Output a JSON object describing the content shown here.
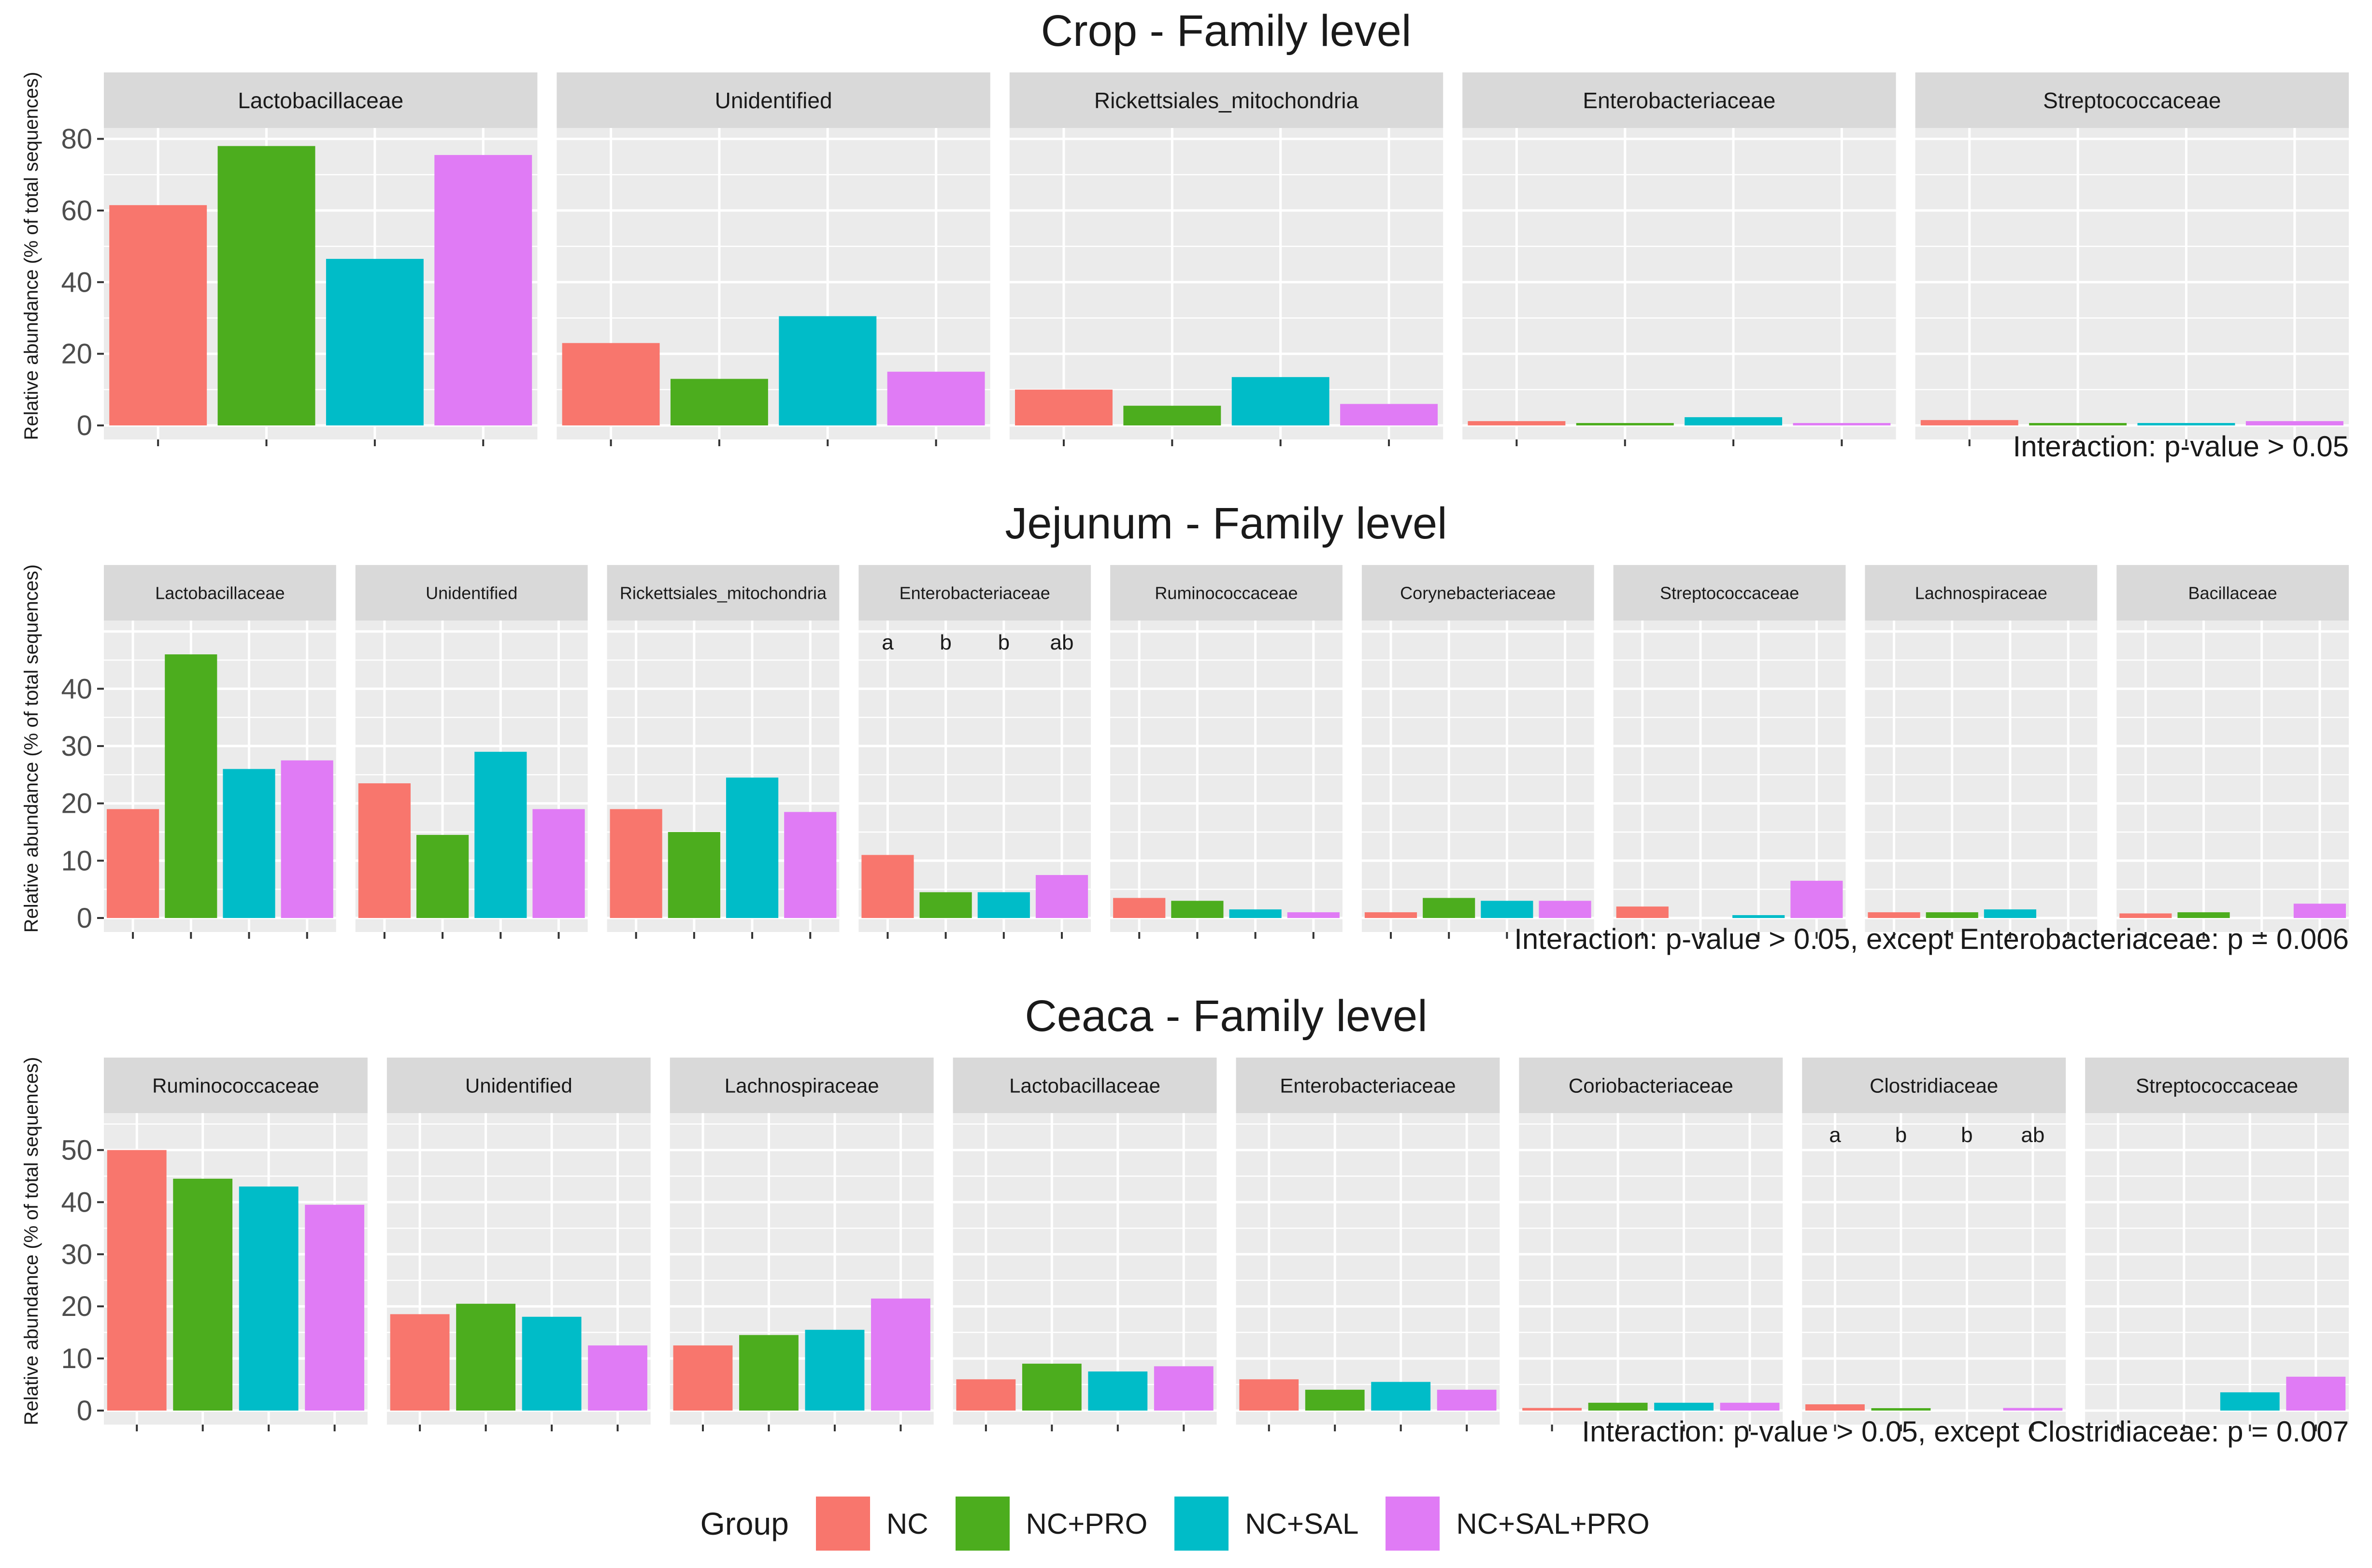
{
  "legend": {
    "title": "Group",
    "groups": [
      "NC",
      "NC+PRO",
      "NC+SAL",
      "NC+SAL+PRO"
    ],
    "colors": [
      "#F8766D",
      "#4CAD1E",
      "#00BCC8",
      "#E07BF5"
    ]
  },
  "y_axis_label": "Relative abundance (% of total sequences)",
  "chart_data": [
    {
      "type": "bar",
      "title": "Crop - Family level",
      "ylabel": "Relative abundance (% of total sequences)",
      "ylim": [
        0,
        80
      ],
      "yticks": [
        0,
        20,
        40,
        60,
        80
      ],
      "series_names": [
        "NC",
        "NC+PRO",
        "NC+SAL",
        "NC+SAL+PRO"
      ],
      "facets": [
        {
          "label": "Lactobacillaceae",
          "values": [
            61.5,
            78,
            46.5,
            75.5
          ]
        },
        {
          "label": "Unidentified",
          "values": [
            23,
            13,
            30.5,
            15
          ]
        },
        {
          "label": "Rickettsiales_mitochondria",
          "values": [
            10,
            5.5,
            13.5,
            6
          ]
        },
        {
          "label": "Enterobacteriaceae",
          "values": [
            1.2,
            0.5,
            2.3,
            0.2
          ]
        },
        {
          "label": "Streptococcaceae",
          "values": [
            1.5,
            0.5,
            0.5,
            1.2
          ]
        }
      ],
      "note": "Interaction: p-value > 0.05"
    },
    {
      "type": "bar",
      "title": "Jejunum - Family level",
      "ylabel": "Relative abundance (% of total sequences)",
      "ylim": [
        0,
        50
      ],
      "yticks": [
        0,
        10,
        20,
        30,
        40
      ],
      "series_names": [
        "NC",
        "NC+PRO",
        "NC+SAL",
        "NC+SAL+PRO"
      ],
      "facets": [
        {
          "label": "Lactobacillaceae",
          "values": [
            19,
            46,
            26,
            27.5
          ]
        },
        {
          "label": "Unidentified",
          "values": [
            23.5,
            14.5,
            29,
            19
          ]
        },
        {
          "label": "Rickettsiales_mitochondria",
          "values": [
            19,
            15,
            24.5,
            18.5
          ]
        },
        {
          "label": "Enterobacteriaceae",
          "values": [
            11,
            4.5,
            4.5,
            7.5
          ],
          "letters": [
            "a",
            "b",
            "b",
            "ab"
          ]
        },
        {
          "label": "Ruminococcaceae",
          "values": [
            3.5,
            3,
            1.5,
            1
          ]
        },
        {
          "label": "Corynebacteriaceae",
          "values": [
            1,
            3.5,
            3,
            3
          ]
        },
        {
          "label": "Streptococcaceae",
          "values": [
            2,
            0,
            0.5,
            6.5
          ]
        },
        {
          "label": "Lachnospiraceae",
          "values": [
            1,
            1,
            1.5,
            0
          ]
        },
        {
          "label": "Bacillaceae",
          "values": [
            0.8,
            1,
            0,
            2.5
          ]
        }
      ],
      "note": "Interaction: p-value > 0.05, except Enterobacteriaceae: p = 0.006"
    },
    {
      "type": "bar",
      "title": "Ceaca - Family level",
      "ylabel": "Relative abundance (% of total sequences)",
      "ylim": [
        0,
        55
      ],
      "yticks": [
        0,
        10,
        20,
        30,
        40,
        50
      ],
      "series_names": [
        "NC",
        "NC+PRO",
        "NC+SAL",
        "NC+SAL+PRO"
      ],
      "facets": [
        {
          "label": "Ruminococcaceae",
          "values": [
            50,
            44.5,
            43,
            39.5
          ]
        },
        {
          "label": "Unidentified",
          "values": [
            18.5,
            20.5,
            18,
            12.5
          ]
        },
        {
          "label": "Lachnospiraceae",
          "values": [
            12.5,
            14.5,
            15.5,
            21.5
          ]
        },
        {
          "label": "Lactobacillaceae",
          "values": [
            6,
            9,
            7.5,
            8.5
          ]
        },
        {
          "label": "Enterobacteriaceae",
          "values": [
            6,
            4,
            5.5,
            4
          ]
        },
        {
          "label": "Coriobacteriaceae",
          "values": [
            0.5,
            1.5,
            1.5,
            1.5
          ]
        },
        {
          "label": "Clostridiaceae",
          "values": [
            1.2,
            0.2,
            0,
            0.5
          ],
          "letters": [
            "a",
            "b",
            "b",
            "ab"
          ]
        },
        {
          "label": "Streptococcaceae",
          "values": [
            0,
            0,
            3.5,
            6.5
          ]
        }
      ],
      "note": "Interaction: p-value > 0.05, except Clostridiaceae: p = 0.007"
    }
  ]
}
